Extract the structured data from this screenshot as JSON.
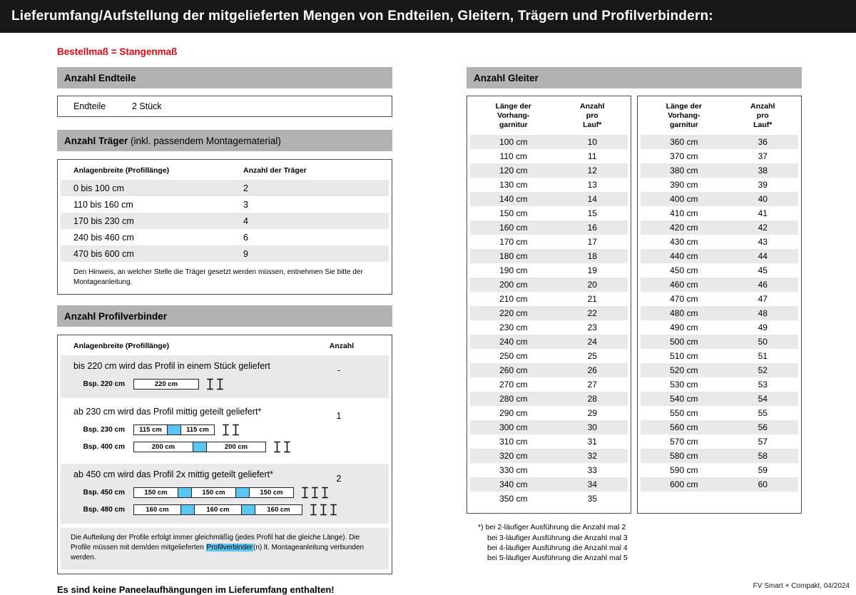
{
  "page": {
    "title": "Lieferumfang/Aufstellung der mitgelieferten Mengen von Endteilen, Gleitern, Trägern und Profilverbindern:",
    "subtitle": "Bestellmaß = Stangenmaß",
    "footer": "FV Smart + Compakt, 04/2024"
  },
  "endteile": {
    "header": "Anzahl Endteile",
    "label": "Endteile",
    "value": "2 Stück"
  },
  "traeger": {
    "header_bold": "Anzahl Träger",
    "header_normal": " (inkl. passendem Montagematerial)",
    "col1": "Anlagenbreite (Profillänge)",
    "col2": "Anzahl der Träger",
    "rows": [
      {
        "range": "0 bis 100 cm",
        "count": "2"
      },
      {
        "range": "110 bis 160 cm",
        "count": "3"
      },
      {
        "range": "170 bis 230 cm",
        "count": "4"
      },
      {
        "range": "240 bis 460 cm",
        "count": "6"
      },
      {
        "range": "470 bis 600 cm",
        "count": "9"
      }
    ],
    "note": "Den Hinweis, an welcher Stelle die Träger gesetzt werden müssen, entnehmen Sie bitte der Montageanleitung."
  },
  "profilverbinder": {
    "header": "Anzahl Profilverbinder",
    "col1": "Anlagenbreite (Profillänge)",
    "col2": "Anzahl",
    "sections": [
      {
        "text": "bis 220 cm wird das Profil in einem Stück geliefert",
        "count": "-",
        "examples": [
          {
            "label": "Bsp. 220 cm",
            "segments": [
              "220 cm"
            ],
            "brackets": 2
          }
        ]
      },
      {
        "text": "ab 230 cm wird das Profil mittig geteilt geliefert*",
        "count": "1",
        "examples": [
          {
            "label": "Bsp. 230 cm",
            "segments": [
              "115 cm",
              "115 cm"
            ],
            "brackets": 2
          },
          {
            "label": "Bsp. 400 cm",
            "segments": [
              "200 cm",
              "200 cm"
            ],
            "brackets": 2
          }
        ]
      },
      {
        "text": "ab 450 cm wird das Profil 2x mittig geteilt geliefert*",
        "count": "2",
        "examples": [
          {
            "label": "Bsp. 450 cm",
            "segments": [
              "150 cm",
              "150 cm",
              "150 cm"
            ],
            "brackets": 3
          },
          {
            "label": "Bsp. 480 cm",
            "segments": [
              "160 cm",
              "160 cm",
              "160 cm"
            ],
            "brackets": 3
          }
        ]
      }
    ],
    "note_part1": "Die Aufteilung der Profile erfolgt immer gleichmäßig (jedes Profil hat die gleiche Länge). Die Profile müssen mit dem/den mitgelieferten ",
    "note_highlight": "Profilverbinder",
    "note_part2": "(n) lt. Montageanleitung verbunden werden."
  },
  "paneel_note": "Es sind keine Paneelaufhängungen im Lieferumfang enthalten!",
  "gleiter": {
    "header": "Anzahl Gleiter",
    "col1": "Länge der\nVorhang-\ngarnitur",
    "col2": "Anzahl\npro\nLauf*",
    "table1": [
      {
        "l": "100 cm",
        "n": "10"
      },
      {
        "l": "110 cm",
        "n": "11"
      },
      {
        "l": "120 cm",
        "n": "12"
      },
      {
        "l": "130 cm",
        "n": "13"
      },
      {
        "l": "140 cm",
        "n": "14"
      },
      {
        "l": "150 cm",
        "n": "15"
      },
      {
        "l": "160 cm",
        "n": "16"
      },
      {
        "l": "170 cm",
        "n": "17"
      },
      {
        "l": "180 cm",
        "n": "18"
      },
      {
        "l": "190 cm",
        "n": "19"
      },
      {
        "l": "200 cm",
        "n": "20"
      },
      {
        "l": "210 cm",
        "n": "21"
      },
      {
        "l": "220 cm",
        "n": "22"
      },
      {
        "l": "230 cm",
        "n": "23"
      },
      {
        "l": "240 cm",
        "n": "24"
      },
      {
        "l": "250 cm",
        "n": "25"
      },
      {
        "l": "260 cm",
        "n": "26"
      },
      {
        "l": "270 cm",
        "n": "27"
      },
      {
        "l": "280 cm",
        "n": "28"
      },
      {
        "l": "290 cm",
        "n": "29"
      },
      {
        "l": "300 cm",
        "n": "30"
      },
      {
        "l": "310 cm",
        "n": "31"
      },
      {
        "l": "320 cm",
        "n": "32"
      },
      {
        "l": "330 cm",
        "n": "33"
      },
      {
        "l": "340 cm",
        "n": "34"
      },
      {
        "l": "350 cm",
        "n": "35"
      }
    ],
    "table2": [
      {
        "l": "360 cm",
        "n": "36"
      },
      {
        "l": "370 cm",
        "n": "37"
      },
      {
        "l": "380 cm",
        "n": "38"
      },
      {
        "l": "390 cm",
        "n": "39"
      },
      {
        "l": "400 cm",
        "n": "40"
      },
      {
        "l": "410 cm",
        "n": "41"
      },
      {
        "l": "420 cm",
        "n": "42"
      },
      {
        "l": "430 cm",
        "n": "43"
      },
      {
        "l": "440 cm",
        "n": "44"
      },
      {
        "l": "450 cm",
        "n": "45"
      },
      {
        "l": "460 cm",
        "n": "46"
      },
      {
        "l": "470 cm",
        "n": "47"
      },
      {
        "l": "480 cm",
        "n": "48"
      },
      {
        "l": "490 cm",
        "n": "49"
      },
      {
        "l": "500 cm",
        "n": "50"
      },
      {
        "l": "510 cm",
        "n": "51"
      },
      {
        "l": "520 cm",
        "n": "52"
      },
      {
        "l": "530 cm",
        "n": "53"
      },
      {
        "l": "540 cm",
        "n": "54"
      },
      {
        "l": "550 cm",
        "n": "55"
      },
      {
        "l": "560 cm",
        "n": "56"
      },
      {
        "l": "570 cm",
        "n": "57"
      },
      {
        "l": "580 cm",
        "n": "58"
      },
      {
        "l": "590 cm",
        "n": "59"
      },
      {
        "l": "600 cm",
        "n": "60"
      }
    ],
    "footnotes": [
      "*) bei 2-läufiger Ausführung die Anzahl mal 2",
      "bei 3-läufiger Ausführung die Anzahl mal 3",
      "bei 4-läufiger Ausführung die Anzahl mal 4",
      "bei 5-läufiger Ausführung die Anzahl mal 5"
    ]
  }
}
